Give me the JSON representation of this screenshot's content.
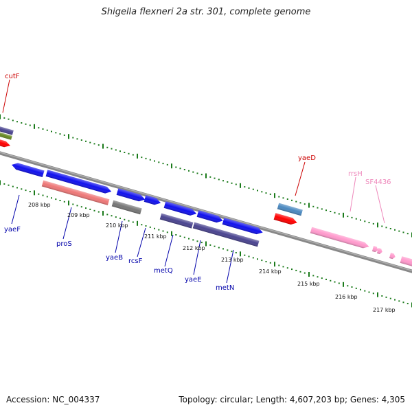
{
  "header": {
    "title": "Shigella flexneri 2a str. 301, complete genome"
  },
  "footer": {
    "accession": "Accession: NC_004337",
    "summary": "Topology: circular; Length: 4,607,203 bp; Genes: 4,305"
  },
  "ticks": [
    {
      "kbp": 208,
      "label": "208 kbp"
    },
    {
      "kbp": 209,
      "label": "209 kbp"
    },
    {
      "kbp": 210,
      "label": "210 kbp"
    },
    {
      "kbp": 211,
      "label": "211 kbp"
    },
    {
      "kbp": 212,
      "label": "212 kbp"
    },
    {
      "kbp": 213,
      "label": "213 kbp"
    },
    {
      "kbp": 214,
      "label": "214 kbp"
    },
    {
      "kbp": 215,
      "label": "215 kbp"
    },
    {
      "kbp": 216,
      "label": "216 kbp"
    },
    {
      "kbp": 217,
      "label": "217 kbp"
    }
  ],
  "gene_labels": [
    {
      "name": "cutF",
      "color": "#cc0000"
    },
    {
      "name": "yaeF",
      "color": "#0000aa"
    },
    {
      "name": "proS",
      "color": "#0000aa"
    },
    {
      "name": "yaeB",
      "color": "#0000aa"
    },
    {
      "name": "rcsF",
      "color": "#0000aa"
    },
    {
      "name": "metQ",
      "color": "#0000aa"
    },
    {
      "name": "yaeE",
      "color": "#0000aa"
    },
    {
      "name": "metN",
      "color": "#0000aa"
    },
    {
      "name": "yaeD",
      "color": "#cc0000"
    },
    {
      "name": "rrsH",
      "color": "#ee88bb"
    },
    {
      "name": "SF4436",
      "color": "#ee88bb"
    }
  ],
  "colors": {
    "backbone": "#888888",
    "dot_track": "#1a7a1a",
    "cds_forward": "#1010ee",
    "rna": "#ff99cc",
    "highlight_red": "#ff0000",
    "protein_pink": "#ee7777",
    "gray_feature": "#777777",
    "purple_feature": "#4a4490",
    "steel_blue": "#4a88c0",
    "olive_feature": "#668822"
  }
}
